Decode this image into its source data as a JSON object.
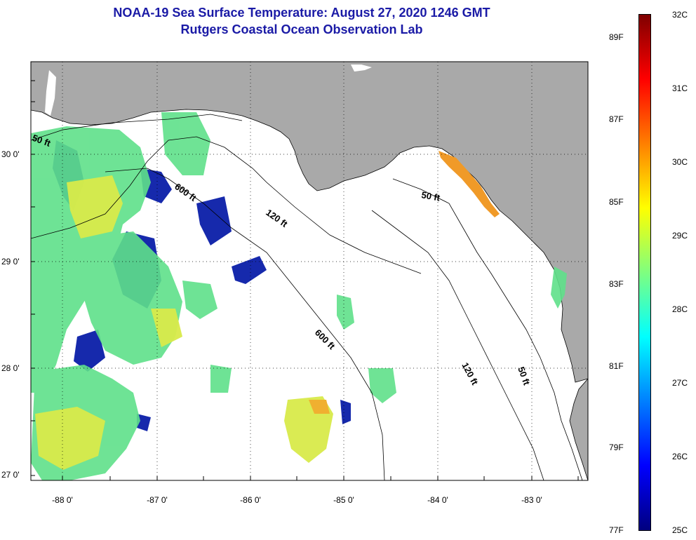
{
  "header": {
    "title": "NOAA-19 Sea Surface Temperature:  August 27, 2020 1246 GMT",
    "subtitle": "Rutgers Coastal Ocean Observation Lab"
  },
  "map": {
    "lat_labels": [
      "30 0'",
      "29 0'",
      "28 0'",
      "27 0'"
    ],
    "lon_labels": [
      "-88 0'",
      "-87 0'",
      "-86 0'",
      "-85 0'",
      "-84 0'",
      "-83 0'"
    ],
    "contour_labels": [
      "50 ft",
      "600 ft",
      "120 ft",
      "50 ft",
      "600 ft",
      "120 ft",
      "50 ft"
    ],
    "colors": {
      "land": "#a9a9a9",
      "ocean_nodata": "#ffffff",
      "grid": "#000000"
    }
  },
  "colorbar": {
    "celsius_labels": [
      "32C",
      "31C",
      "30C",
      "29C",
      "28C",
      "27C",
      "26C",
      "25C"
    ],
    "fahrenheit_labels": [
      "89F",
      "87F",
      "85F",
      "83F",
      "81F",
      "79F",
      "77F"
    ],
    "gradient": [
      "#00007f",
      "#0000ff",
      "#007fff",
      "#00ffff",
      "#7fff7f",
      "#ffff00",
      "#ff7f00",
      "#ff0000",
      "#7f0000"
    ]
  }
}
